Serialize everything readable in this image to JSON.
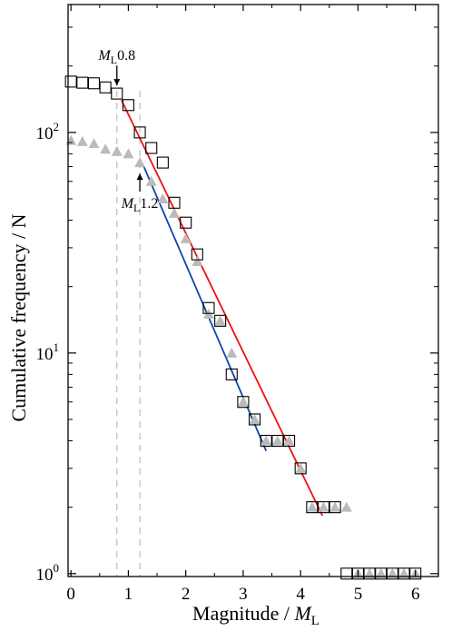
{
  "chart_data": {
    "type": "scatter",
    "xlabel": "Magnitude / ",
    "xlabel_var": "M",
    "xlabel_sub": "L",
    "ylabel": "Cumulative frequency / N",
    "xlim": [
      -0.05,
      6.4
    ],
    "ylim": [
      0.97,
      380
    ],
    "yscale": "log",
    "x_ticks": [
      0,
      1,
      2,
      3,
      4,
      5,
      6
    ],
    "x_tick_labels": [
      "0",
      "1",
      "2",
      "3",
      "4",
      "5",
      "6"
    ],
    "y_ticks": [
      1,
      10,
      100
    ],
    "y_tick_bases": [
      "10",
      "10",
      "10"
    ],
    "y_tick_exps": [
      "0",
      "1",
      "2"
    ],
    "series": [
      {
        "marker": "open-square",
        "color": "#000000",
        "points": [
          [
            0.0,
            170
          ],
          [
            0.2,
            168
          ],
          [
            0.4,
            167
          ],
          [
            0.6,
            160
          ],
          [
            0.8,
            150
          ],
          [
            1.0,
            133
          ],
          [
            1.2,
            100
          ],
          [
            1.4,
            85
          ],
          [
            1.6,
            73
          ],
          [
            1.8,
            48
          ],
          [
            2.0,
            39
          ],
          [
            2.2,
            28
          ],
          [
            2.4,
            16
          ],
          [
            2.6,
            14
          ],
          [
            2.8,
            8
          ],
          [
            3.0,
            6
          ],
          [
            3.2,
            5
          ],
          [
            3.4,
            4
          ],
          [
            3.6,
            4
          ],
          [
            3.8,
            4
          ],
          [
            4.0,
            3
          ],
          [
            4.2,
            2
          ],
          [
            4.4,
            2
          ],
          [
            4.6,
            2
          ],
          [
            4.8,
            1
          ],
          [
            5.0,
            1
          ],
          [
            5.2,
            1
          ],
          [
            5.4,
            1
          ],
          [
            5.6,
            1
          ],
          [
            5.8,
            1
          ],
          [
            6.0,
            1
          ]
        ]
      },
      {
        "marker": "filled-triangle",
        "color": "#bbbbbb",
        "points": [
          [
            0.0,
            92
          ],
          [
            0.2,
            91
          ],
          [
            0.4,
            89
          ],
          [
            0.6,
            84
          ],
          [
            0.8,
            82
          ],
          [
            1.0,
            80
          ],
          [
            1.2,
            73
          ],
          [
            1.4,
            60
          ],
          [
            1.6,
            50
          ],
          [
            1.8,
            43
          ],
          [
            2.0,
            33
          ],
          [
            2.2,
            26
          ],
          [
            2.4,
            15
          ],
          [
            2.6,
            14
          ],
          [
            2.8,
            10
          ],
          [
            3.0,
            6
          ],
          [
            3.2,
            5
          ],
          [
            3.4,
            4
          ],
          [
            3.6,
            4
          ],
          [
            3.8,
            4
          ],
          [
            4.0,
            3
          ],
          [
            4.2,
            2
          ],
          [
            4.4,
            2
          ],
          [
            4.6,
            2
          ],
          [
            4.8,
            2
          ],
          [
            5.0,
            1
          ],
          [
            5.2,
            1
          ],
          [
            5.4,
            1
          ],
          [
            5.6,
            1
          ],
          [
            5.8,
            1
          ],
          [
            6.0,
            1
          ]
        ]
      }
    ],
    "fit_lines": [
      {
        "color": "#ee1111",
        "x": [
          0.88,
          4.38
        ],
        "y": [
          140,
          1.83
        ]
      },
      {
        "color": "#1144aa",
        "x": [
          1.27,
          3.4
        ],
        "y": [
          70,
          3.6
        ]
      }
    ],
    "reference_lines": [
      0.8,
      1.2
    ],
    "annotations": [
      {
        "var": "M",
        "sub": "L",
        "value": "0.8",
        "x": 0.8,
        "y": 150,
        "label_position": "above"
      },
      {
        "var": "M",
        "sub": "L",
        "value": "1.2",
        "x": 1.2,
        "y": 73,
        "label_position": "below"
      }
    ]
  }
}
